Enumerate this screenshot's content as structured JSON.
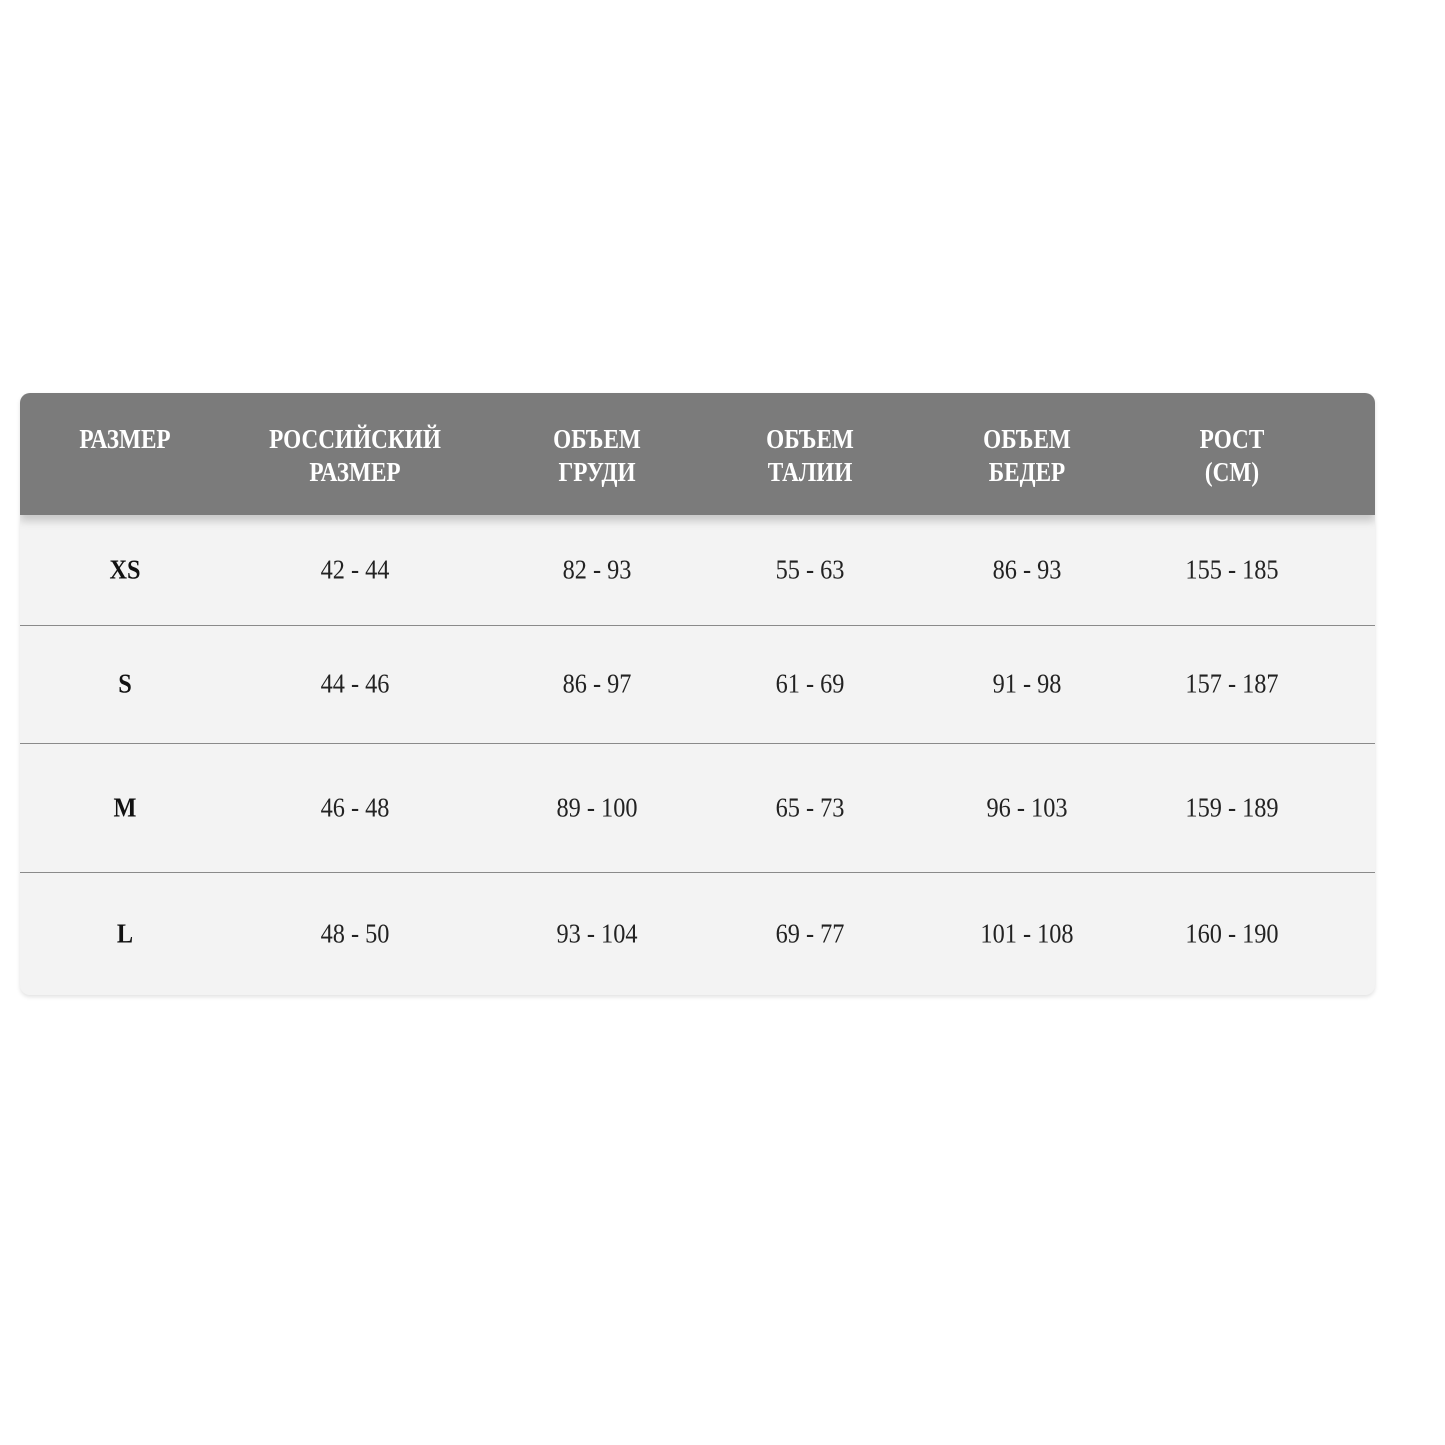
{
  "table": {
    "headers": [
      "РАЗМЕР",
      "РОССИЙСКИЙ\nРАЗМЕР",
      "ОБЪЕМ\nГРУДИ",
      "ОБЪЕМ\nТАЛИИ",
      "ОБЪЕМ\nБЕДЕР",
      "РОСТ\n(СМ)"
    ],
    "rows": [
      [
        "XS",
        "42 - 44",
        "82 - 93",
        "55 - 63",
        "86 - 93",
        "155 - 185"
      ],
      [
        "S",
        "44 - 46",
        "86 - 97",
        "61 - 69",
        "91 - 98",
        "157 - 187"
      ],
      [
        "M",
        "46 - 48",
        "89 - 100",
        "65 - 73",
        "96 - 103",
        "159 - 189"
      ],
      [
        "L",
        "48 - 50",
        "93 - 104",
        "69 - 77",
        "101 - 108",
        "160 - 190"
      ]
    ]
  },
  "colors": {
    "header_bg": "#7b7b7b",
    "body_bg": "#f3f3f3"
  }
}
